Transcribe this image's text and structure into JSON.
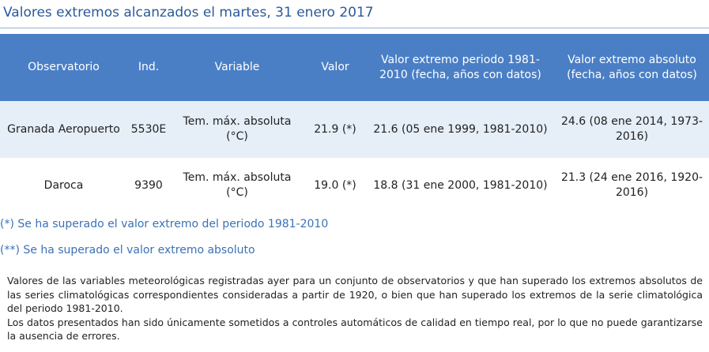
{
  "header": {
    "title": "Valores extremos alcanzados el martes, 31 enero 2017"
  },
  "table": {
    "columns": [
      "Observatorio",
      "Ind.",
      "Variable",
      "Valor",
      "Valor extremo periodo 1981-2010 (fecha, años con datos)",
      "Valor extremo absoluto (fecha, años con datos)"
    ],
    "rows": [
      {
        "observatorio": "Granada Aeropuerto",
        "indicativo": "5530E",
        "variable": "Tem. máx. absoluta (°C)",
        "valor": "21.9 (*)",
        "extremo_periodo": "21.6 (05 ene 1999, 1981-2010)",
        "extremo_absoluto": "24.6 (08 ene 2014, 1973-2016)"
      },
      {
        "observatorio": "Daroca",
        "indicativo": "9390",
        "variable": "Tem. máx. absoluta (°C)",
        "valor": "19.0 (*)",
        "extremo_periodo": "18.8 (31 ene 2000, 1981-2010)",
        "extremo_absoluto": "21.3 (24 ene 2016, 1920-2016)"
      }
    ]
  },
  "notes": {
    "single_asterisk": "(*) Se ha superado el valor extremo del periodo 1981-2010",
    "double_asterisk": "(**) Se ha superado el valor extremo absoluto"
  },
  "description": {
    "paragraph_1": "Valores de las variables meteorológicas registradas ayer para un conjunto de observatorios y que han superado los extremos absolutos de las series climatológicas correspondientes consideradas a partir de 1920, o bien que han superado los extremos de la serie climatológica del periodo 1981-2010.",
    "paragraph_2": "Los datos presentados han sido únicamente sometidos a controles automáticos de calidad en tiempo real, por lo que no puede garantizarse la ausencia de errores."
  }
}
